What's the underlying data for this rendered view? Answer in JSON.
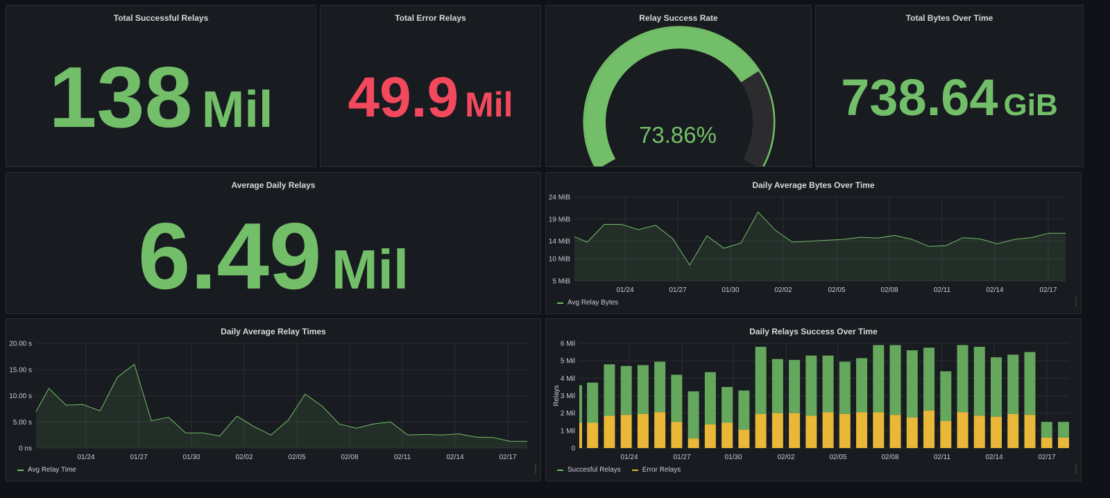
{
  "colors": {
    "green": "#73bf69",
    "red": "#f2495c",
    "yellow": "#eab839",
    "background": "#111217",
    "panel": "#181b1f"
  },
  "panels": {
    "total_successful": {
      "title": "Total Successful Relays",
      "value": "138",
      "unit": "Mil"
    },
    "total_error": {
      "title": "Total Error Relays",
      "value": "49.9",
      "unit": "Mil"
    },
    "success_rate": {
      "title": "Relay Success Rate",
      "value": "73.86%",
      "gauge_fraction": 0.7386,
      "min_label": "0",
      "max_label": "100"
    },
    "total_bytes": {
      "title": "Total Bytes Over Time",
      "value": "738.64",
      "unit": "GiB"
    },
    "avg_daily": {
      "title": "Average Daily Relays",
      "value": "6.49",
      "unit": "Mil"
    },
    "daily_bytes": {
      "title": "Daily Average Bytes Over Time",
      "legend": "Avg Relay Bytes"
    },
    "relay_times": {
      "title": "Daily Average Relay Times",
      "legend": "Avg Relay Time"
    },
    "relays_success": {
      "title": "Daily Relays Success Over Time",
      "legend_success": "Succesful Relays",
      "legend_error": "Error Relays"
    }
  },
  "chart_data": [
    {
      "type": "area",
      "panel": "daily_bytes",
      "x_ticks": [
        "01/24",
        "01/27",
        "01/30",
        "02/02",
        "02/05",
        "02/08",
        "02/11",
        "02/14",
        "02/17"
      ],
      "y_ticks": [
        "5 MiB",
        "10 MiB",
        "14 MiB",
        "19 MiB",
        "24 MiB"
      ],
      "y_tick_values": [
        5,
        10,
        14,
        19,
        24
      ],
      "ylim": [
        5,
        24
      ],
      "series": [
        {
          "name": "Avg Relay Bytes",
          "x_day": [
            0,
            0.75,
            1.75,
            2.75,
            3.75,
            4.75,
            5.75,
            6.75,
            7.75,
            8.75,
            9.75,
            10.75,
            11.75,
            12.75,
            13.75,
            14.75,
            15.75,
            16.75,
            17.75,
            18.75,
            19.75,
            20.75,
            21.75,
            22.75,
            23.75,
            24.75,
            25.75,
            26.75,
            27.75,
            28.75
          ],
          "values": [
            15,
            13.8,
            17.8,
            17.8,
            16.6,
            17.6,
            14.6,
            8.6,
            15.2,
            12.4,
            13.6,
            20.6,
            16.5,
            13.8,
            14,
            14.2,
            14.4,
            14.9,
            14.7,
            15.3,
            14.4,
            12.8,
            13,
            14.8,
            14.5,
            13.4,
            14.4,
            14.8,
            15.8,
            15.8
          ]
        }
      ]
    },
    {
      "type": "area",
      "panel": "relay_times",
      "x_ticks": [
        "01/24",
        "01/27",
        "01/30",
        "02/02",
        "02/05",
        "02/08",
        "02/11",
        "02/14",
        "02/17"
      ],
      "y_ticks": [
        "0 ns",
        "5.00 s",
        "10.00 s",
        "15.00 s",
        "20.00 s"
      ],
      "y_tick_values": [
        0,
        5,
        10,
        15,
        20
      ],
      "ylim": [
        0,
        20
      ],
      "series": [
        {
          "name": "Avg Relay Time",
          "x_day": [
            0,
            0.75,
            1.75,
            2.75,
            3.75,
            4.75,
            5.75,
            6.75,
            7.75,
            8.75,
            9.75,
            10.75,
            11.75,
            12.75,
            13.75,
            14.75,
            15.75,
            16.75,
            17.75,
            18.75,
            19.75,
            20.75,
            21.75,
            22.75,
            23.75,
            24.75,
            25.75,
            26.75,
            27.75,
            28.75
          ],
          "values": [
            7,
            11.4,
            8.2,
            8.3,
            7.1,
            13.5,
            16,
            5.2,
            5.9,
            2.9,
            2.9,
            2.3,
            6.1,
            4.1,
            2.5,
            5.3,
            10.3,
            8,
            4.6,
            3.8,
            4.6,
            5,
            2.5,
            2.6,
            2.5,
            2.7,
            2.1,
            2,
            1.3,
            1.3
          ]
        }
      ]
    },
    {
      "type": "bar",
      "panel": "relays_success",
      "stacked": true,
      "x_ticks": [
        "01/24",
        "01/27",
        "01/30",
        "02/02",
        "02/05",
        "02/08",
        "02/11",
        "02/14",
        "02/17"
      ],
      "y_ticks": [
        "0",
        "1 Mil",
        "2 Mil",
        "3 Mil",
        "4 Mil",
        "5 Mil",
        "6 Mil"
      ],
      "y_tick_values": [
        0,
        1,
        2,
        3,
        4,
        5,
        6
      ],
      "ylabel": "Relays",
      "ylim": [
        0,
        6
      ],
      "x_day": [
        0,
        0.75,
        1.75,
        2.75,
        3.75,
        4.75,
        5.75,
        6.75,
        7.75,
        8.75,
        9.75,
        10.75,
        11.75,
        12.75,
        13.75,
        14.75,
        15.75,
        16.75,
        17.75,
        18.75,
        19.75,
        20.75,
        21.75,
        22.75,
        23.75,
        24.75,
        25.75,
        26.75,
        27.75,
        28.75
      ],
      "series": [
        {
          "name": "Error Relays",
          "values": [
            1.45,
            1.45,
            1.85,
            1.9,
            1.95,
            2.05,
            1.5,
            0.55,
            1.35,
            1.45,
            1.05,
            1.95,
            2,
            2,
            1.85,
            2.05,
            1.95,
            2.05,
            2.05,
            1.9,
            1.75,
            2.15,
            1.55,
            2.05,
            1.85,
            1.8,
            1.95,
            1.9,
            0.6,
            0.6
          ]
        },
        {
          "name": "Succesful Relays",
          "values": [
            2.15,
            2.3,
            2.95,
            2.8,
            2.8,
            2.9,
            2.7,
            2.7,
            3.0,
            2.05,
            2.25,
            3.85,
            3.1,
            3.05,
            3.45,
            3.25,
            3.0,
            3.1,
            3.85,
            4.0,
            3.85,
            3.6,
            2.85,
            3.85,
            3.95,
            3.4,
            3.4,
            3.6,
            0.9,
            0.9
          ]
        }
      ]
    }
  ]
}
